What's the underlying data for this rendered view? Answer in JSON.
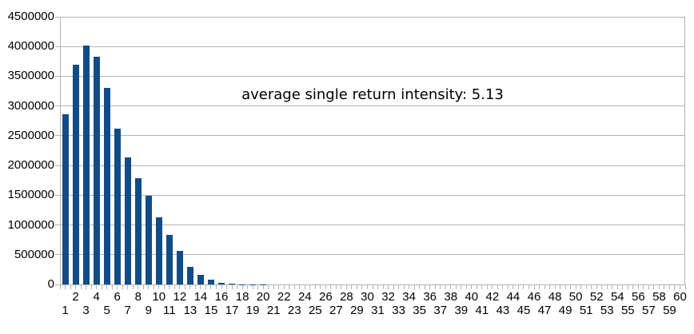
{
  "chart_data": {
    "type": "bar",
    "title": "",
    "annotation": "average single return intensity: 5.13",
    "xlabel": "",
    "ylabel": "",
    "legend": "none",
    "grid": "horizontal-solid",
    "ylim": [
      0,
      4500000
    ],
    "ytick_interval": 500000,
    "yticks": [
      "0",
      "500000",
      "1000000",
      "1500000",
      "2000000",
      "2500000",
      "3000000",
      "3500000",
      "4000000",
      "4500000"
    ],
    "categories": [
      1,
      2,
      3,
      4,
      5,
      6,
      7,
      8,
      9,
      10,
      11,
      12,
      13,
      14,
      15,
      16,
      17,
      18,
      19,
      20,
      21,
      22,
      23,
      24,
      25,
      26,
      27,
      28,
      29,
      30,
      31,
      32,
      33,
      34,
      35,
      36,
      37,
      38,
      39,
      40,
      41,
      42,
      43,
      44,
      45,
      46,
      47,
      48,
      49,
      50,
      51,
      52,
      53,
      54,
      55,
      56,
      57,
      58,
      59,
      60
    ],
    "values": [
      2860000,
      3690000,
      4020000,
      3830000,
      3300000,
      2620000,
      2140000,
      1790000,
      1490000,
      1130000,
      830000,
      560000,
      300000,
      160000,
      78000,
      30000,
      12000,
      6000,
      3000,
      1500,
      0,
      0,
      0,
      0,
      0,
      0,
      0,
      0,
      0,
      0,
      0,
      0,
      0,
      0,
      0,
      0,
      0,
      0,
      0,
      0,
      0,
      0,
      0,
      0,
      0,
      0,
      0,
      0,
      0,
      0,
      0,
      0,
      0,
      0,
      0,
      0,
      0,
      0,
      0,
      0
    ],
    "colors": {
      "bar": "#114c87",
      "grid": "#b3b3b3",
      "axis": "#b3b3b3",
      "text": "#000000",
      "background": "#ffffff"
    }
  }
}
